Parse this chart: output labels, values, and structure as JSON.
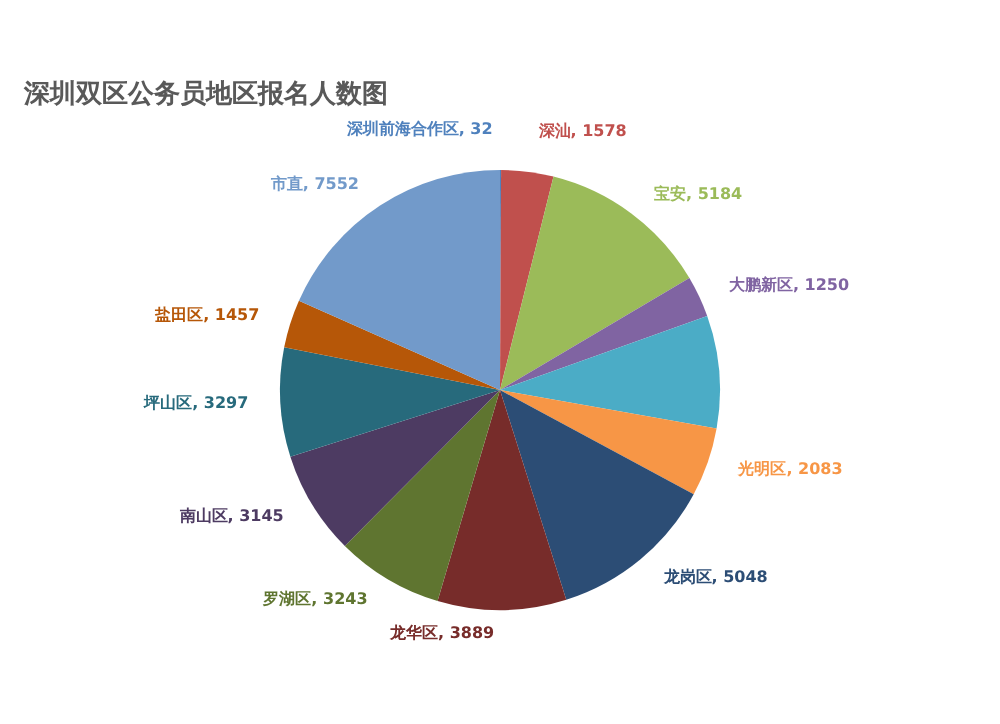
{
  "chart_data": {
    "type": "pie",
    "title": "深圳双区公务员地区报名人数图",
    "categories": [
      "深圳前海合作区",
      "深汕",
      "宝安",
      "大鹏新区",
      null,
      "光明区",
      "龙岗区",
      "龙华区",
      "罗湖区",
      "南山区",
      "坪山区",
      "盐田区",
      "市直"
    ],
    "values": [
      32,
      1578,
      5184,
      1250,
      3400,
      2083,
      5048,
      3889,
      3243,
      3145,
      3297,
      1457,
      7552
    ],
    "value_labels": [
      "32",
      "1578",
      "5184",
      "1250",
      null,
      "2083",
      "5048",
      "3889",
      "3243",
      "3145",
      "3297",
      "1457",
      "7552"
    ],
    "colors": [
      "#4f81bd",
      "#c0504d",
      "#9bbb59",
      "#8064a2",
      "#4bacc6",
      "#f79646",
      "#2c4d75",
      "#772c2a",
      "#5f7530",
      "#4d3b62",
      "#276a7c",
      "#b65708",
      "#729aca"
    ]
  }
}
